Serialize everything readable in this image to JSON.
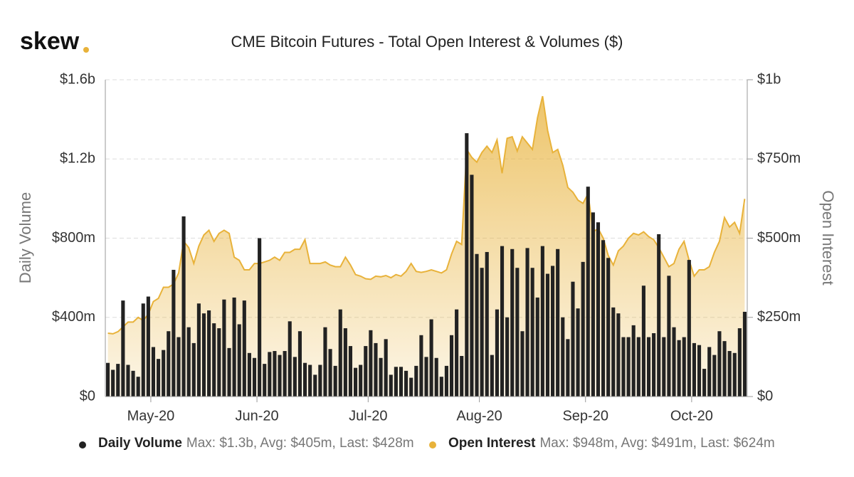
{
  "chart_data": {
    "type": "bar+area",
    "logo": "skew",
    "title": "CME Bitcoin Futures - Total Open Interest & Volumes ($)",
    "ylabel": "Daily Volume",
    "y2label": "Open Interest",
    "categories": [
      null,
      null,
      null,
      null,
      null,
      null,
      null,
      null,
      null,
      "May-20",
      null,
      null,
      null,
      null,
      null,
      null,
      null,
      null,
      null,
      null,
      null,
      null,
      null,
      null,
      null,
      null,
      null,
      null,
      null,
      null,
      "Jun-20",
      null,
      null,
      null,
      null,
      null,
      null,
      null,
      null,
      null,
      null,
      null,
      null,
      null,
      null,
      null,
      null,
      null,
      null,
      null,
      null,
      null,
      "Jul-20",
      null,
      null,
      null,
      null,
      null,
      null,
      null,
      null,
      null,
      null,
      null,
      null,
      null,
      null,
      null,
      null,
      null,
      null,
      null,
      null,
      null,
      "Aug-20",
      null,
      null,
      null,
      null,
      null,
      null,
      null,
      null,
      null,
      null,
      null,
      null,
      null,
      null,
      null,
      null,
      null,
      null,
      null,
      null,
      "Sep-20",
      null,
      null,
      null,
      null,
      null,
      null,
      null,
      null,
      null,
      null,
      null,
      null,
      null,
      null,
      null,
      null,
      null,
      null,
      null,
      null,
      "Oct-20",
      null,
      null,
      null,
      null,
      null,
      null,
      null,
      null,
      null,
      null
    ],
    "series": [
      {
        "name": "Daily Volume",
        "type": "bar",
        "color": "#222222",
        "stats": "Max: $1.3b, Avg: $405m, Last: $428m",
        "values": [
          170,
          135,
          165,
          485,
          160,
          130,
          100,
          470,
          505,
          250,
          190,
          235,
          330,
          640,
          300,
          910,
          350,
          270,
          470,
          420,
          435,
          370,
          345,
          490,
          245,
          500,
          365,
          485,
          220,
          195,
          800,
          165,
          225,
          230,
          210,
          230,
          380,
          200,
          330,
          170,
          160,
          110,
          160,
          350,
          240,
          155,
          440,
          345,
          255,
          145,
          160,
          255,
          335,
          270,
          195,
          290,
          110,
          150,
          150,
          130,
          95,
          155,
          310,
          200,
          390,
          195,
          100,
          155,
          310,
          440,
          205,
          1330,
          1120,
          720,
          650,
          730,
          210,
          440,
          760,
          400,
          745,
          650,
          330,
          750,
          650,
          500,
          760,
          620,
          660,
          745,
          400,
          290,
          580,
          445,
          680,
          1060,
          930,
          880,
          790,
          700,
          450,
          420,
          300,
          300,
          360,
          300,
          560,
          300,
          320,
          820,
          300,
          610,
          350,
          285,
          300,
          690,
          270,
          260,
          140,
          250,
          210,
          330,
          280,
          230,
          220,
          345,
          428
        ]
      },
      {
        "name": "Open Interest",
        "type": "area",
        "axis": "y2",
        "color": "#e8b23a",
        "stats": "Max: $948m, Avg: $491m, Last: $624m",
        "values": [
          200,
          198,
          205,
          220,
          235,
          235,
          250,
          240,
          260,
          300,
          310,
          345,
          345,
          355,
          390,
          490,
          470,
          420,
          475,
          510,
          525,
          490,
          515,
          525,
          515,
          440,
          430,
          400,
          400,
          420,
          420,
          425,
          430,
          440,
          430,
          455,
          455,
          465,
          465,
          495,
          420,
          420,
          420,
          425,
          415,
          410,
          410,
          440,
          415,
          385,
          380,
          372,
          370,
          380,
          378,
          382,
          375,
          385,
          380,
          395,
          420,
          395,
          392,
          395,
          400,
          395,
          390,
          400,
          450,
          490,
          480,
          780,
          755,
          740,
          770,
          790,
          770,
          810,
          705,
          815,
          820,
          775,
          820,
          800,
          780,
          880,
          948,
          840,
          770,
          780,
          730,
          660,
          645,
          620,
          610,
          640,
          520,
          530,
          500,
          445,
          415,
          460,
          475,
          500,
          515,
          510,
          520,
          505,
          495,
          470,
          440,
          410,
          420,
          465,
          490,
          430,
          380,
          400,
          400,
          410,
          455,
          490,
          565,
          535,
          550,
          515,
          624
        ]
      }
    ],
    "ylim": [
      0,
      1600
    ],
    "yticks": [
      {
        "value": 0,
        "label": "$0"
      },
      {
        "value": 400,
        "label": "$400m"
      },
      {
        "value": 800,
        "label": "$800m"
      },
      {
        "value": 1200,
        "label": "$1.2b"
      },
      {
        "value": 1600,
        "label": "$1.6b"
      }
    ],
    "y2lim": [
      0,
      1000
    ],
    "y2ticks": [
      {
        "value": 0,
        "label": "$0"
      },
      {
        "value": 250,
        "label": "$250m"
      },
      {
        "value": 500,
        "label": "$500m"
      },
      {
        "value": 750,
        "label": "$750m"
      },
      {
        "value": 1000,
        "label": "$1b"
      }
    ],
    "grid": true
  }
}
